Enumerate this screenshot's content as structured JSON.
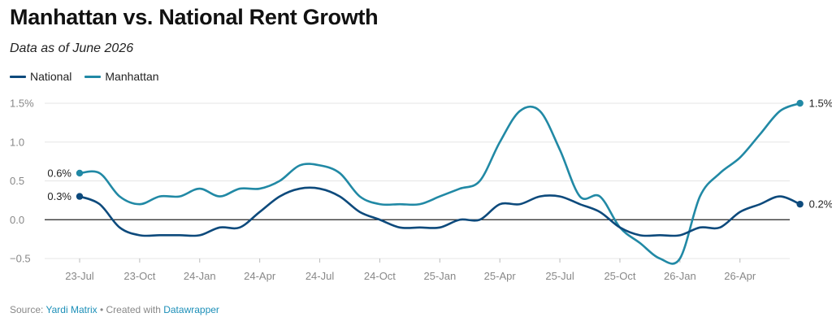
{
  "header": {
    "title": "Manhattan vs. National Rent Growth",
    "subtitle": "Data as of June 2026"
  },
  "footer": {
    "source_label": "Source:",
    "source_name": "Yardi Matrix",
    "separator": "•",
    "created_label": "Created with",
    "created_tool": "Datawrapper"
  },
  "colors": {
    "national": "#0d4a7c",
    "manhattan": "#2189a5",
    "zero_line": "#222222",
    "grid": "#e5e5e5"
  },
  "chart_data": {
    "type": "line",
    "title": "Manhattan vs. National Rent Growth",
    "subtitle": "Data as of June 2026",
    "ylim": [
      -0.5,
      1.5
    ],
    "yticks": [
      "1.5%",
      "1.0",
      "0.5",
      "0.0",
      "−0.5"
    ],
    "ytick_values": [
      1.5,
      1.0,
      0.5,
      0.0,
      -0.5
    ],
    "xticks": [
      "23-Jul",
      "23-Oct",
      "24-Jan",
      "24-Apr",
      "24-Jul",
      "24-Oct",
      "25-Jan",
      "25-Apr",
      "25-Jul",
      "25-Oct",
      "26-Jan",
      "26-Apr"
    ],
    "xtick_months": [
      0,
      3,
      6,
      9,
      12,
      15,
      18,
      21,
      24,
      27,
      30,
      33
    ],
    "x_months_range": [
      0,
      35
    ],
    "grid": true,
    "legend_position": "top-left",
    "series": [
      {
        "name": "National",
        "color": "#0d4a7c",
        "end_label_start": "0.3%",
        "end_label_end": "0.2%",
        "values": [
          0.3,
          0.2,
          -0.1,
          -0.2,
          -0.2,
          -0.2,
          -0.2,
          -0.1,
          -0.1,
          0.1,
          0.3,
          0.4,
          0.4,
          0.3,
          0.1,
          0.0,
          -0.1,
          -0.1,
          -0.1,
          0.0,
          0.0,
          0.2,
          0.2,
          0.3,
          0.3,
          0.2,
          0.1,
          -0.1,
          -0.2,
          -0.2,
          -0.2,
          -0.1,
          -0.1,
          0.1,
          0.2,
          0.3,
          0.2
        ]
      },
      {
        "name": "Manhattan",
        "color": "#2189a5",
        "end_label_start": "0.6%",
        "end_label_end": "1.5%",
        "values": [
          0.6,
          0.6,
          0.3,
          0.2,
          0.3,
          0.3,
          0.4,
          0.3,
          0.4,
          0.4,
          0.5,
          0.7,
          0.7,
          0.6,
          0.3,
          0.2,
          0.2,
          0.2,
          0.3,
          0.4,
          0.5,
          1.0,
          1.4,
          1.4,
          0.9,
          0.3,
          0.3,
          -0.1,
          -0.3,
          -0.5,
          -0.5,
          0.3,
          0.6,
          0.8,
          1.1,
          1.4,
          1.5
        ]
      }
    ]
  }
}
